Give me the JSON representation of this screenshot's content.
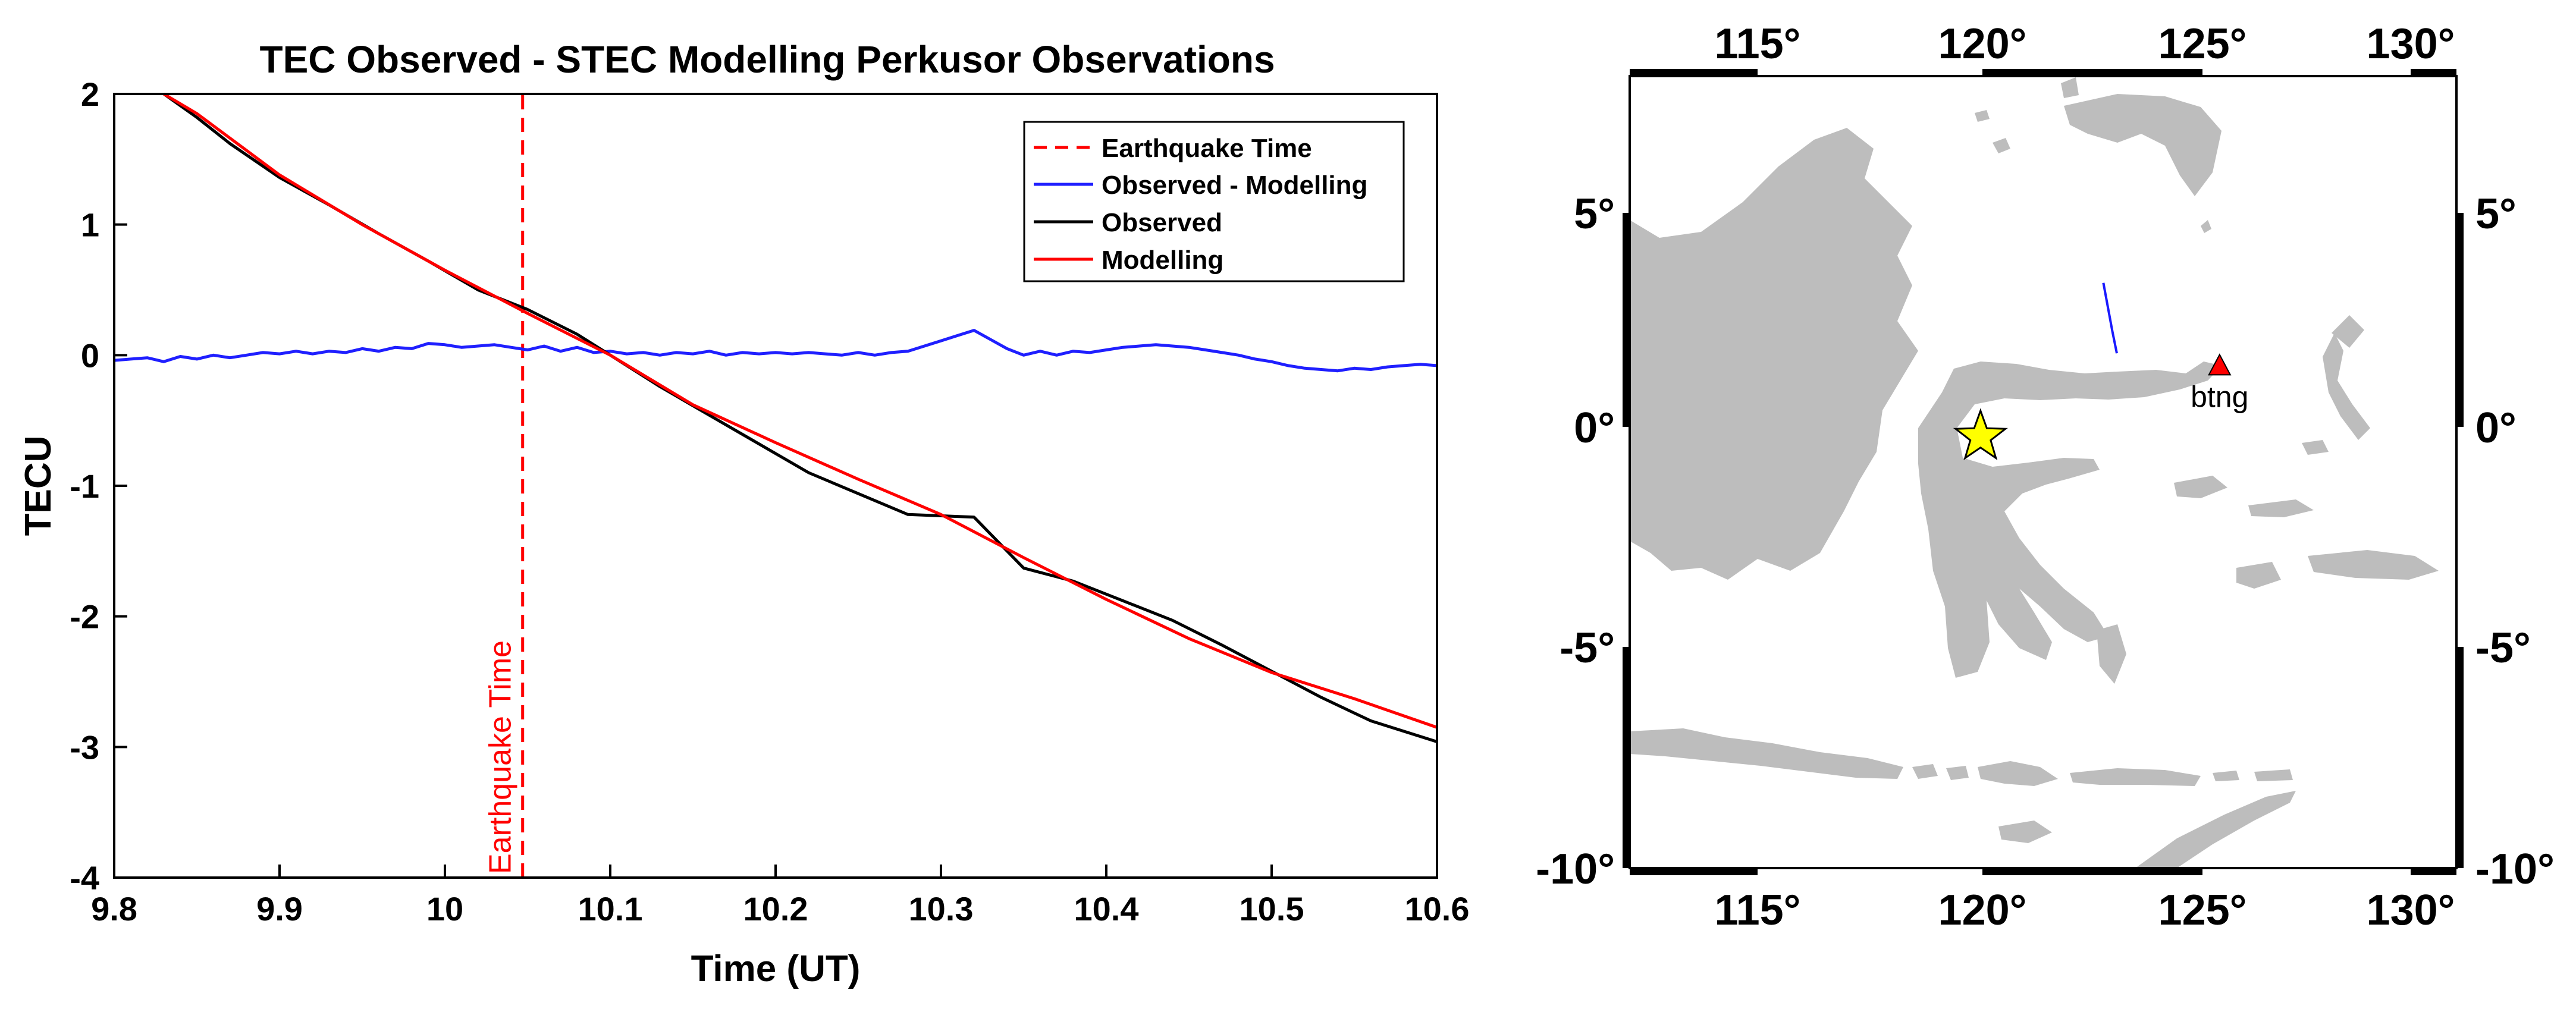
{
  "chart_data": [
    {
      "type": "line",
      "title": "TEC Observed - STEC Modelling Perkusor Observations",
      "xlabel": "Time (UT)",
      "ylabel": "TECU",
      "xlim": [
        9.8,
        10.6
      ],
      "ylim": [
        -4,
        2
      ],
      "x_ticks": [
        "9.8",
        "9.9",
        "10",
        "10.1",
        "10.2",
        "10.3",
        "10.4",
        "10.5",
        "10.6"
      ],
      "y_ticks": [
        "2",
        "1",
        "0",
        "-1",
        "-2",
        "-3",
        "-4"
      ],
      "grid": false,
      "legend_position": "top-right",
      "earthquake_time": 10.047,
      "annotation": "Earthquake Time",
      "colors": {
        "earthquake": "#ff0000",
        "residual": "#1f1fff",
        "observed": "#000000",
        "modelling": "#ff0000"
      },
      "series": [
        {
          "name": "Earthquake Time",
          "style": "dashed",
          "x": [
            10.047,
            10.047
          ],
          "y": [
            -4,
            2
          ]
        },
        {
          "name": "Observed - Modelling",
          "x": [
            9.8,
            9.81,
            9.82,
            9.83,
            9.84,
            9.85,
            9.86,
            9.87,
            9.88,
            9.89,
            9.9,
            9.91,
            9.92,
            9.93,
            9.94,
            9.95,
            9.96,
            9.97,
            9.98,
            9.99,
            10.0,
            10.01,
            10.02,
            10.03,
            10.04,
            10.05,
            10.06,
            10.07,
            10.08,
            10.09,
            10.1,
            10.11,
            10.12,
            10.13,
            10.14,
            10.15,
            10.16,
            10.17,
            10.18,
            10.19,
            10.2,
            10.21,
            10.22,
            10.23,
            10.24,
            10.25,
            10.26,
            10.27,
            10.28,
            10.29,
            10.3,
            10.31,
            10.32,
            10.33,
            10.34,
            10.35,
            10.36,
            10.37,
            10.38,
            10.39,
            10.4,
            10.41,
            10.42,
            10.43,
            10.44,
            10.45,
            10.46,
            10.47,
            10.48,
            10.49,
            10.5,
            10.51,
            10.52,
            10.53,
            10.54,
            10.55,
            10.56,
            10.57,
            10.58,
            10.59,
            10.6
          ],
          "y": [
            -0.04,
            -0.03,
            -0.02,
            -0.05,
            -0.01,
            -0.03,
            0.0,
            -0.02,
            0.0,
            0.02,
            0.01,
            0.03,
            0.01,
            0.03,
            0.02,
            0.05,
            0.03,
            0.06,
            0.05,
            0.09,
            0.08,
            0.06,
            0.07,
            0.08,
            0.06,
            0.04,
            0.07,
            0.03,
            0.06,
            0.02,
            0.03,
            0.01,
            0.02,
            0.0,
            0.02,
            0.01,
            0.03,
            0.0,
            0.02,
            0.01,
            0.02,
            0.01,
            0.02,
            0.01,
            0.0,
            0.02,
            0.0,
            0.02,
            0.03,
            0.07,
            0.11,
            0.15,
            0.19,
            0.12,
            0.05,
            0.0,
            0.03,
            0.0,
            0.03,
            0.02,
            0.04,
            0.06,
            0.07,
            0.08,
            0.07,
            0.06,
            0.04,
            0.02,
            0.0,
            -0.03,
            -0.05,
            -0.08,
            -0.1,
            -0.11,
            -0.12,
            -0.1,
            -0.11,
            -0.09,
            -0.08,
            -0.07,
            -0.08
          ]
        },
        {
          "name": "Observed",
          "x": [
            9.83,
            9.85,
            9.87,
            9.9,
            9.93,
            9.96,
            9.99,
            10.02,
            10.05,
            10.08,
            10.1,
            10.13,
            10.16,
            10.19,
            10.22,
            10.25,
            10.28,
            10.3,
            10.32,
            10.35,
            10.38,
            10.41,
            10.44,
            10.47,
            10.5,
            10.53,
            10.56,
            10.6
          ],
          "y": [
            2.0,
            1.82,
            1.62,
            1.36,
            1.15,
            0.93,
            0.72,
            0.5,
            0.35,
            0.16,
            0.0,
            -0.24,
            -0.46,
            -0.68,
            -0.9,
            -1.06,
            -1.22,
            -1.23,
            -1.24,
            -1.63,
            -1.73,
            -1.88,
            -2.03,
            -2.22,
            -2.42,
            -2.62,
            -2.8,
            -2.96
          ]
        },
        {
          "name": "Modelling",
          "x": [
            9.83,
            9.85,
            9.9,
            9.95,
            10.0,
            10.05,
            10.1,
            10.15,
            10.2,
            10.25,
            10.3,
            10.35,
            10.4,
            10.45,
            10.5,
            10.55,
            10.6
          ],
          "y": [
            2.0,
            1.85,
            1.38,
            1.0,
            0.65,
            0.32,
            0.0,
            -0.38,
            -0.67,
            -0.95,
            -1.22,
            -1.55,
            -1.87,
            -2.17,
            -2.43,
            -2.63,
            -2.85
          ]
        }
      ]
    },
    {
      "type": "map",
      "x_ticks": [
        "115°",
        "120°",
        "125°",
        "130°"
      ],
      "y_ticks": [
        "5°",
        "0°",
        "-5°",
        "-10°"
      ],
      "xlim": [
        112,
        130.5
      ],
      "ylim": [
        -10,
        8
      ],
      "land_color": "#bdbdbd",
      "epicenter": {
        "lon": 119.85,
        "lat": -0.2
      },
      "station": {
        "label": "btng",
        "lon": 125.2,
        "lat": 1.4
      },
      "track": {
        "lon": [
          122.6,
          122.8,
          122.9
        ],
        "lat": [
          3.3,
          2.2,
          1.7
        ]
      },
      "colors": {
        "epicenter": "#ffff00",
        "station": "#ff0000",
        "track": "#1a1aff",
        "land": "#bdbdbd"
      }
    }
  ]
}
